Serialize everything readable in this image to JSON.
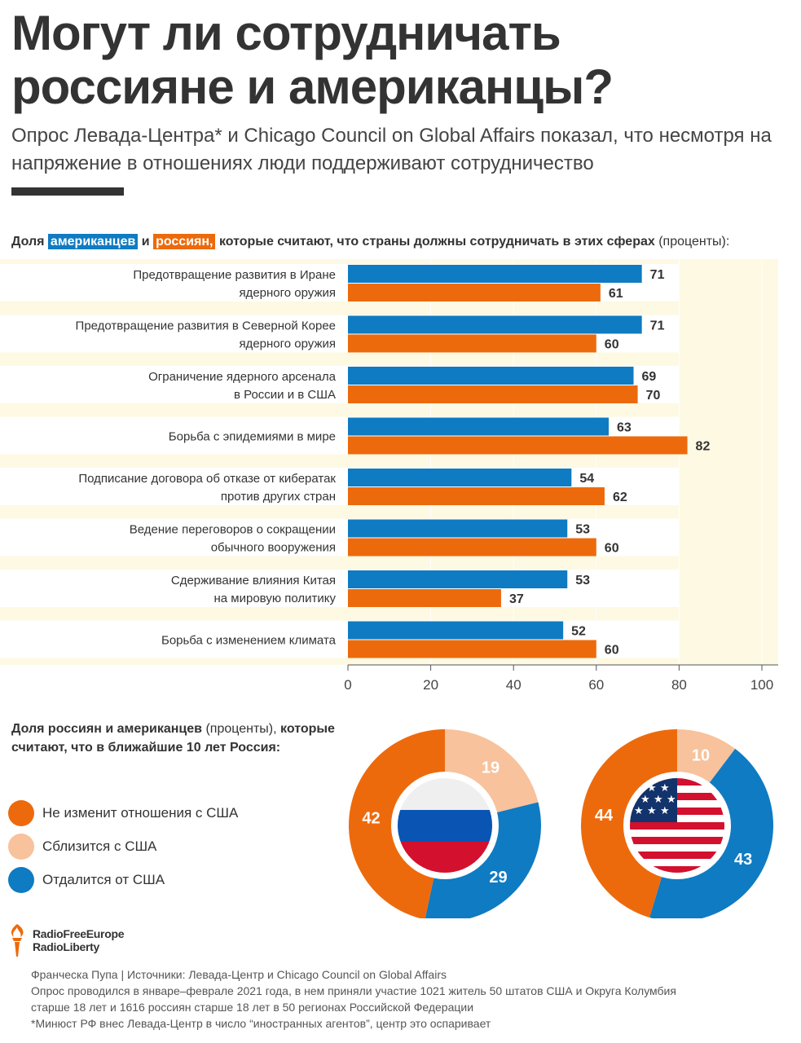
{
  "header": {
    "title": "Могут ли сотрудничать россияне и американцы?",
    "subtitle": "Опрос Левада-Центра* и Chicago Council on Global Affairs показал, что несмотря на напряжение в отношениях люди поддерживают сотрудничество"
  },
  "bar_heading": {
    "prefix": "Доля",
    "americans": "американцев",
    "and": "и",
    "russians": "россиян,",
    "rest": "которые считают, что страны должны сотрудничать в этих сферах",
    "unit": "(проценты):"
  },
  "pie_heading": {
    "bold_a": "Доля россиян и американцев",
    "normal": "(проценты),",
    "bold_b": "которые считают, что в ближайшие 10 лет Россия:"
  },
  "legend": [
    {
      "label": "Не изменит отношения с США",
      "color": "#ed6a0c"
    },
    {
      "label": "Сблизится с США",
      "color": "#f7c29c"
    },
    {
      "label": "Отдалится от США",
      "color": "#0f7bc2"
    }
  ],
  "colors": {
    "americans": "#0f7bc2",
    "russians": "#ed6a0c",
    "closer": "#f7c29c",
    "band": "#fdf9e3",
    "text": "#333333"
  },
  "chart_data": [
    {
      "type": "bar",
      "orientation": "horizontal",
      "categories": [
        [
          "Предотвращение развития в Иране",
          "ядерного оружия"
        ],
        [
          "Предотвращение развития в Северной Корее",
          "ядерного оружия"
        ],
        [
          "Ограничение ядерного арсенала",
          "в России и в США"
        ],
        [
          "Борьба с эпидемиями в мире"
        ],
        [
          "Подписание договора об отказе от кибератак",
          "против других стран"
        ],
        [
          "Ведение переговоров о сокращении",
          "обычного вооружения"
        ],
        [
          "Сдерживание влияния Китая",
          "на мировую политику"
        ],
        [
          "Борьба с изменением климата"
        ]
      ],
      "series": [
        {
          "name": "американцев",
          "color": "#0f7bc2",
          "values": [
            71,
            71,
            69,
            63,
            54,
            53,
            53,
            52
          ]
        },
        {
          "name": "россиян",
          "color": "#ed6a0c",
          "values": [
            61,
            60,
            70,
            82,
            62,
            60,
            37,
            60
          ]
        }
      ],
      "xlim": [
        0,
        100
      ],
      "xticks": [
        0,
        20,
        40,
        60,
        80,
        100
      ],
      "data_labels": true
    },
    {
      "type": "pie",
      "variant": "donut",
      "center_icon": "russian-flag-icon",
      "slices": [
        {
          "label": "Сблизится с США",
          "value": 19,
          "color": "#f7c29c"
        },
        {
          "label": "Отдалится от США",
          "value": 29,
          "color": "#0f7bc2"
        },
        {
          "label": "Не изменит отношения с США",
          "value": 42,
          "color": "#ed6a0c"
        }
      ]
    },
    {
      "type": "pie",
      "variant": "donut",
      "center_icon": "us-flag-icon",
      "slices": [
        {
          "label": "Сблизится с США",
          "value": 10,
          "color": "#f7c29c"
        },
        {
          "label": "Отдалится от США",
          "value": 43,
          "color": "#0f7bc2"
        },
        {
          "label": "Не изменит отношения с США",
          "value": 44,
          "color": "#ed6a0c"
        }
      ]
    }
  ],
  "logo": {
    "line1": "RadioFreeEurope",
    "line2": "RadioLiberty"
  },
  "footer": {
    "credit": "Франческа Пупа | Источники: Левада-Центр и Chicago Council on Global Affairs",
    "method_1": "Опрос проводился в январе–феврале 2021 года, в нем приняли участие 1021 житель 50 штатов США и Округа Колумбия",
    "method_2": "старше 18 лет и 1616 россиян старше 18 лет в 50 регионах Российской Федерации",
    "note": "*Минюст РФ внес Левада-Центр в число “иностранных агентов”, центр это оспаривает"
  }
}
